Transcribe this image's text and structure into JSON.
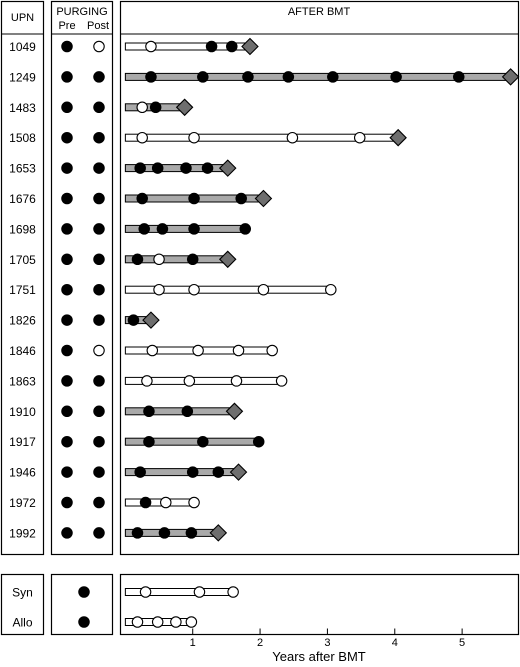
{
  "chart_data": {
    "type": "timeline",
    "headers": {
      "upn": "UPN",
      "purging": "PURGING",
      "pre": "Pre",
      "post": "Post",
      "after": "AFTER BMT"
    },
    "xlabel": "Years after BMT",
    "xlim": [
      -0.05,
      5.8
    ],
    "xticks": [
      1,
      2,
      3,
      4,
      5
    ],
    "patients": [
      {
        "upn": "1049",
        "pre": "filled",
        "post": "open",
        "bar": "white",
        "end": 1.85,
        "end_marker": "diamond",
        "events": [
          {
            "x": 0.38,
            "t": "open"
          },
          {
            "x": 1.28,
            "t": "filled"
          },
          {
            "x": 1.58,
            "t": "filled"
          }
        ]
      },
      {
        "upn": "1249",
        "pre": "filled",
        "post": "filled",
        "bar": "gray",
        "end": 5.72,
        "end_marker": "diamond",
        "events": [
          {
            "x": 0.38,
            "t": "filled"
          },
          {
            "x": 1.15,
            "t": "filled"
          },
          {
            "x": 1.82,
            "t": "filled"
          },
          {
            "x": 2.42,
            "t": "filled"
          },
          {
            "x": 3.08,
            "t": "filled"
          },
          {
            "x": 4.02,
            "t": "filled"
          },
          {
            "x": 4.95,
            "t": "filled"
          }
        ]
      },
      {
        "upn": "1483",
        "pre": "filled",
        "post": "filled",
        "bar": "gray",
        "end": 0.88,
        "end_marker": "diamond",
        "events": [
          {
            "x": 0.25,
            "t": "open"
          },
          {
            "x": 0.45,
            "t": "filled"
          }
        ]
      },
      {
        "upn": "1508",
        "pre": "filled",
        "post": "filled",
        "bar": "white",
        "end": 4.05,
        "end_marker": "diamond",
        "events": [
          {
            "x": 0.25,
            "t": "open"
          },
          {
            "x": 1.02,
            "t": "open"
          },
          {
            "x": 2.48,
            "t": "open"
          },
          {
            "x": 3.48,
            "t": "open"
          }
        ]
      },
      {
        "upn": "1653",
        "pre": "filled",
        "post": "filled",
        "bar": "gray",
        "end": 1.52,
        "end_marker": "diamond",
        "events": [
          {
            "x": 0.22,
            "t": "filled"
          },
          {
            "x": 0.48,
            "t": "filled"
          },
          {
            "x": 0.9,
            "t": "filled"
          },
          {
            "x": 1.22,
            "t": "filled"
          }
        ]
      },
      {
        "upn": "1676",
        "pre": "filled",
        "post": "filled",
        "bar": "gray",
        "end": 2.05,
        "end_marker": "diamond",
        "events": [
          {
            "x": 0.25,
            "t": "filled"
          },
          {
            "x": 1.02,
            "t": "filled"
          },
          {
            "x": 1.72,
            "t": "filled"
          }
        ]
      },
      {
        "upn": "1698",
        "pre": "filled",
        "post": "filled",
        "bar": "gray",
        "end": 1.78,
        "end_marker": "filled",
        "events": [
          {
            "x": 0.28,
            "t": "filled"
          },
          {
            "x": 0.55,
            "t": "filled"
          },
          {
            "x": 1.02,
            "t": "filled"
          }
        ]
      },
      {
        "upn": "1705",
        "pre": "filled",
        "post": "filled",
        "bar": "gray",
        "end": 1.52,
        "end_marker": "diamond",
        "events": [
          {
            "x": 0.18,
            "t": "filled"
          },
          {
            "x": 0.5,
            "t": "open"
          },
          {
            "x": 1.0,
            "t": "filled"
          }
        ]
      },
      {
        "upn": "1751",
        "pre": "filled",
        "post": "filled",
        "bar": "white",
        "end": 3.05,
        "end_marker": "open",
        "events": [
          {
            "x": 0.5,
            "t": "open"
          },
          {
            "x": 1.02,
            "t": "open"
          },
          {
            "x": 2.05,
            "t": "open"
          }
        ]
      },
      {
        "upn": "1826",
        "pre": "filled",
        "post": "filled",
        "bar": "gray",
        "end": 0.38,
        "end_marker": "diamond",
        "events": [
          {
            "x": 0.12,
            "t": "filled"
          }
        ]
      },
      {
        "upn": "1846",
        "pre": "filled",
        "post": "open",
        "bar": "white",
        "end": 2.18,
        "end_marker": "open",
        "events": [
          {
            "x": 0.4,
            "t": "open"
          },
          {
            "x": 1.08,
            "t": "open"
          },
          {
            "x": 1.68,
            "t": "open"
          }
        ]
      },
      {
        "upn": "1863",
        "pre": "filled",
        "post": "filled",
        "bar": "white",
        "end": 2.32,
        "end_marker": "open",
        "events": [
          {
            "x": 0.32,
            "t": "open"
          },
          {
            "x": 0.95,
            "t": "open"
          },
          {
            "x": 1.65,
            "t": "open"
          }
        ]
      },
      {
        "upn": "1910",
        "pre": "filled",
        "post": "filled",
        "bar": "gray",
        "end": 1.62,
        "end_marker": "diamond",
        "events": [
          {
            "x": 0.35,
            "t": "filled"
          },
          {
            "x": 0.92,
            "t": "filled"
          }
        ]
      },
      {
        "upn": "1917",
        "pre": "filled",
        "post": "filled",
        "bar": "gray",
        "end": 1.98,
        "end_marker": "filled",
        "events": [
          {
            "x": 0.35,
            "t": "filled"
          },
          {
            "x": 1.15,
            "t": "filled"
          }
        ]
      },
      {
        "upn": "1946",
        "pre": "filled",
        "post": "filled",
        "bar": "gray",
        "end": 1.68,
        "end_marker": "diamond",
        "events": [
          {
            "x": 0.22,
            "t": "filled"
          },
          {
            "x": 1.0,
            "t": "filled"
          },
          {
            "x": 1.38,
            "t": "filled"
          }
        ]
      },
      {
        "upn": "1972",
        "pre": "filled",
        "post": "filled",
        "bar": "white",
        "end": 1.02,
        "end_marker": "open",
        "events": [
          {
            "x": 0.3,
            "t": "filled"
          },
          {
            "x": 0.6,
            "t": "open"
          }
        ]
      },
      {
        "upn": "1992",
        "pre": "filled",
        "post": "filled",
        "bar": "gray",
        "end": 1.38,
        "end_marker": "diamond",
        "events": [
          {
            "x": 0.18,
            "t": "filled"
          },
          {
            "x": 0.58,
            "t": "filled"
          },
          {
            "x": 0.98,
            "t": "filled"
          }
        ]
      }
    ],
    "controls": [
      {
        "label": "Syn",
        "purging": "filled",
        "bar": "white",
        "end": 1.6,
        "end_marker": "open",
        "events": [
          {
            "x": 0.3,
            "t": "open"
          },
          {
            "x": 1.1,
            "t": "open"
          }
        ]
      },
      {
        "label": "Allo",
        "purging": "filled",
        "bar": "white",
        "end": 0.98,
        "end_marker": "open",
        "events": [
          {
            "x": 0.18,
            "t": "open"
          },
          {
            "x": 0.48,
            "t": "open"
          },
          {
            "x": 0.75,
            "t": "open"
          }
        ]
      }
    ]
  }
}
